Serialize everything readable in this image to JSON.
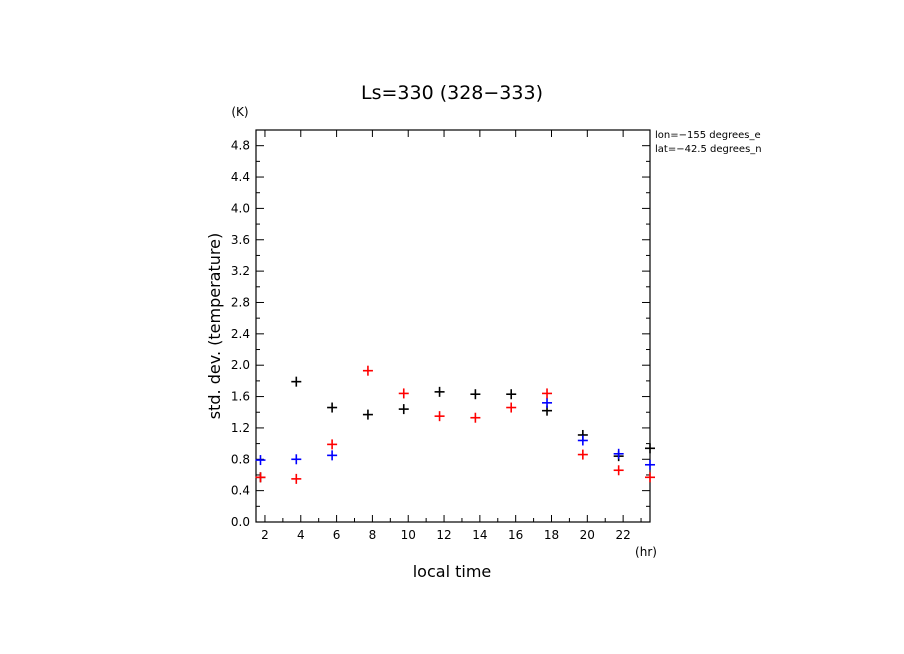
{
  "chart_data": {
    "type": "scatter",
    "title": "Ls=330 (328−333)",
    "xlabel": "local time",
    "ylabel": "std. dev. (temperature)",
    "x_unit": "(hr)",
    "y_unit": "(K)",
    "annotations": [
      "lon=−155 degrees_e",
      "lat=−42.5 degrees_n"
    ],
    "xlim": [
      1.5,
      23.5
    ],
    "ylim": [
      0,
      5.0
    ],
    "xticks": [
      2,
      4,
      6,
      8,
      10,
      12,
      14,
      16,
      18,
      20,
      22
    ],
    "yticks": [
      0.0,
      0.4,
      0.8,
      1.2,
      1.6,
      2.0,
      2.4,
      2.8,
      3.2,
      3.6,
      4.0,
      4.4,
      4.8
    ],
    "ytick_labels": [
      "0.0",
      "0.4",
      "0.8",
      "1.2",
      "1.6",
      "2.0",
      "2.4",
      "2.8",
      "3.2",
      "3.6",
      "4.0",
      "4.4",
      "4.8"
    ],
    "grid": false,
    "series": [
      {
        "color": "#000000",
        "marker": "+",
        "points": [
          [
            1.75,
            0.57
          ],
          [
            3.75,
            1.79
          ],
          [
            5.75,
            1.46
          ],
          [
            7.75,
            1.37
          ],
          [
            9.75,
            1.44
          ],
          [
            11.75,
            1.66
          ],
          [
            13.75,
            1.63
          ],
          [
            15.75,
            1.63
          ],
          [
            17.75,
            1.42
          ],
          [
            19.75,
            1.11
          ],
          [
            21.75,
            0.84
          ],
          [
            23.5,
            0.94
          ]
        ]
      },
      {
        "color": "#0000ff",
        "marker": "+",
        "points": [
          [
            1.75,
            0.79
          ],
          [
            3.75,
            0.8
          ],
          [
            5.75,
            0.85
          ],
          [
            17.75,
            1.52
          ],
          [
            19.75,
            1.04
          ],
          [
            21.75,
            0.87
          ],
          [
            23.5,
            0.73
          ]
        ]
      },
      {
        "color": "#ff0000",
        "marker": "+",
        "points": [
          [
            1.75,
            0.57
          ],
          [
            3.75,
            0.55
          ],
          [
            5.75,
            0.99
          ],
          [
            7.75,
            1.93
          ],
          [
            9.75,
            1.64
          ],
          [
            11.75,
            1.35
          ],
          [
            13.75,
            1.33
          ],
          [
            15.75,
            1.46
          ],
          [
            17.75,
            1.64
          ],
          [
            19.75,
            0.86
          ],
          [
            21.75,
            0.66
          ],
          [
            23.5,
            0.57
          ]
        ]
      }
    ]
  }
}
